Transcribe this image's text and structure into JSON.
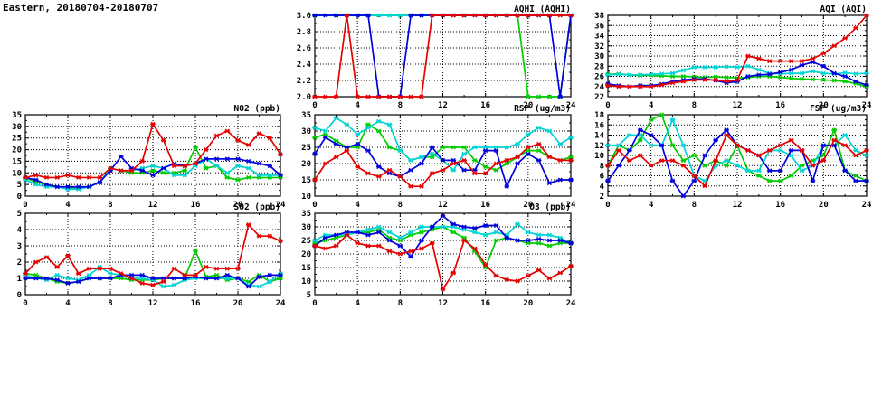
{
  "page_title": "Eastern, 20180704-20180707",
  "colors": {
    "red": "#e60000",
    "green": "#00cc00",
    "blue": "#0000dd",
    "cyan": "#00d4d4"
  },
  "chart_data": [
    {
      "id": "aqhi",
      "type": "line",
      "title": "AQHI (AQHI)",
      "xlim": [
        0,
        24
      ],
      "ylim": [
        2,
        3
      ],
      "xticks": [
        0,
        4,
        8,
        12,
        16,
        20,
        24
      ],
      "yticks": [
        "2.0",
        "2.2",
        "2.4",
        "2.6",
        "2.8",
        "3.0"
      ],
      "grid": true,
      "x": [
        0,
        1,
        2,
        3,
        4,
        5,
        6,
        7,
        8,
        9,
        10,
        11,
        12,
        13,
        14,
        15,
        16,
        17,
        18,
        19,
        20,
        21,
        22,
        23,
        24
      ],
      "series": [
        {
          "name": "green",
          "color": "#00cc00",
          "values": [
            3,
            3,
            3,
            3,
            3,
            3,
            3,
            3,
            3,
            3,
            3,
            3,
            3,
            3,
            3,
            3,
            3,
            3,
            3,
            3,
            2,
            2,
            2,
            2,
            3
          ]
        },
        {
          "name": "cyan",
          "color": "#00d4d4",
          "values": [
            3,
            3,
            3,
            3,
            3,
            3,
            3,
            3,
            3,
            3,
            3,
            3,
            3,
            3,
            3,
            3,
            3,
            3,
            3,
            3,
            3,
            3,
            3,
            3,
            3
          ]
        },
        {
          "name": "blue",
          "color": "#0000dd",
          "values": [
            3,
            3,
            3,
            3,
            3,
            3,
            2,
            2,
            2,
            3,
            3,
            3,
            3,
            3,
            3,
            3,
            3,
            3,
            3,
            3,
            3,
            3,
            3,
            2,
            3
          ]
        },
        {
          "name": "red",
          "color": "#e60000",
          "values": [
            2,
            2,
            2,
            3,
            2,
            2,
            2,
            2,
            2,
            2,
            2,
            3,
            3,
            3,
            3,
            3,
            3,
            3,
            3,
            3,
            3,
            3,
            3,
            3,
            3
          ]
        }
      ]
    },
    {
      "id": "aqi",
      "type": "line",
      "title": "AQI (AQI)",
      "xlim": [
        0,
        24
      ],
      "ylim": [
        22,
        38
      ],
      "xticks": [
        0,
        4,
        8,
        12,
        16,
        20,
        24
      ],
      "yticks": [
        "22",
        "24",
        "26",
        "28",
        "30",
        "32",
        "34",
        "36",
        "38"
      ],
      "grid": true,
      "x": [
        0,
        1,
        2,
        3,
        4,
        5,
        6,
        7,
        8,
        9,
        10,
        11,
        12,
        13,
        14,
        15,
        16,
        17,
        18,
        19,
        20,
        21,
        22,
        23,
        24
      ],
      "series": [
        {
          "name": "green",
          "color": "#00cc00",
          "values": [
            26.4,
            26.5,
            26.3,
            26.2,
            26.2,
            26.1,
            26,
            26,
            25.9,
            25.8,
            25.9,
            25.8,
            25.7,
            25.8,
            26,
            26,
            25.8,
            25.6,
            25.5,
            25.4,
            25.3,
            25.2,
            25,
            24.6,
            24
          ]
        },
        {
          "name": "cyan",
          "color": "#00d4d4",
          "values": [
            26.3,
            26.4,
            26.3,
            26.3,
            26.4,
            26.5,
            26.6,
            27.2,
            27.8,
            27.8,
            27.8,
            27.9,
            27.8,
            28,
            27.3,
            26.6,
            26.5,
            26.6,
            26.6,
            27,
            26.6,
            26.5,
            26.7,
            26.5,
            26.6
          ]
        },
        {
          "name": "blue",
          "color": "#0000dd",
          "values": [
            24.5,
            24.2,
            24,
            24.2,
            24.2,
            24.5,
            25,
            25.3,
            25.5,
            25.5,
            25.2,
            24.7,
            25,
            26,
            26.3,
            26.4,
            26.8,
            27.3,
            28.2,
            28.8,
            28,
            26.6,
            26,
            25,
            24.3
          ]
        },
        {
          "name": "red",
          "color": "#e60000",
          "values": [
            24.2,
            24,
            24,
            24,
            24,
            24.3,
            24.7,
            25,
            25.3,
            25.3,
            25.3,
            25,
            25.3,
            30,
            29.5,
            29,
            29,
            29,
            29,
            29.5,
            30.5,
            32,
            33.5,
            35.5,
            38
          ]
        }
      ]
    },
    {
      "id": "no2",
      "type": "line",
      "title": "NO2 (ppb)",
      "xlim": [
        0,
        24
      ],
      "ylim": [
        0,
        35
      ],
      "xticks": [
        0,
        4,
        8,
        12,
        16,
        20,
        24
      ],
      "yticks": [
        "0",
        "5",
        "10",
        "15",
        "20",
        "25",
        "30",
        "35"
      ],
      "grid": true,
      "x": [
        0,
        1,
        2,
        3,
        4,
        5,
        6,
        7,
        8,
        9,
        10,
        11,
        12,
        13,
        14,
        15,
        16,
        17,
        18,
        19,
        20,
        21,
        22,
        23,
        24
      ],
      "series": [
        {
          "name": "green",
          "color": "#00cc00",
          "values": [
            8,
            6,
            5,
            4,
            4,
            3,
            4,
            6,
            12,
            11,
            10,
            10,
            11,
            10,
            10,
            11,
            21,
            12,
            13,
            8,
            7,
            8,
            8,
            8,
            8
          ]
        },
        {
          "name": "cyan",
          "color": "#00d4d4",
          "values": [
            7,
            5,
            4,
            4,
            3,
            3,
            4,
            6,
            12,
            11,
            11,
            12,
            13,
            12,
            9,
            9,
            13,
            16,
            13,
            10,
            13,
            12,
            9,
            9,
            9
          ]
        },
        {
          "name": "blue",
          "color": "#0000dd",
          "values": [
            8,
            7,
            5,
            4,
            4,
            4,
            4,
            6,
            11,
            17,
            12,
            11,
            9,
            12,
            14,
            13,
            14,
            16,
            16,
            16,
            16,
            15,
            14,
            13,
            9
          ]
        },
        {
          "name": "red",
          "color": "#e60000",
          "values": [
            8,
            9,
            8,
            8,
            9,
            8,
            8,
            8,
            12,
            11,
            11,
            15,
            31,
            24,
            13,
            13,
            14,
            20,
            26,
            28,
            24,
            22,
            27,
            25,
            18
          ]
        }
      ]
    },
    {
      "id": "rsp",
      "type": "line",
      "title": "RSP (ug/m3)",
      "xlim": [
        0,
        24
      ],
      "ylim": [
        10,
        35
      ],
      "xticks": [
        0,
        4,
        8,
        12,
        16,
        20,
        24
      ],
      "yticks": [
        "10",
        "15",
        "20",
        "25",
        "30",
        "35"
      ],
      "grid": true,
      "x": [
        0,
        1,
        2,
        3,
        4,
        5,
        6,
        7,
        8,
        9,
        10,
        11,
        12,
        13,
        14,
        15,
        16,
        17,
        18,
        19,
        20,
        21,
        22,
        23,
        24
      ],
      "series": [
        {
          "name": "green",
          "color": "#00cc00",
          "values": [
            28,
            29,
            27,
            25,
            25,
            32,
            30,
            25,
            24,
            21,
            22,
            22,
            25,
            25,
            25,
            21,
            19,
            18,
            20,
            22,
            24,
            24,
            22,
            21,
            22
          ]
        },
        {
          "name": "cyan",
          "color": "#00d4d4",
          "values": [
            31,
            30,
            34,
            32,
            29,
            31,
            33,
            32,
            24,
            21,
            22,
            23,
            21,
            18,
            23,
            25,
            25,
            25,
            25,
            26,
            29,
            31,
            30,
            26,
            28
          ]
        },
        {
          "name": "blue",
          "color": "#0000dd",
          "values": [
            23,
            28,
            26,
            25,
            26,
            24,
            19,
            17,
            16,
            18,
            20,
            25,
            21,
            21,
            18,
            18,
            24,
            24,
            13,
            20,
            23,
            21,
            14,
            15,
            15
          ]
        },
        {
          "name": "red",
          "color": "#e60000",
          "values": [
            15,
            20,
            22,
            24,
            19,
            17,
            16,
            18,
            16,
            13,
            13,
            17,
            18,
            20,
            21,
            17,
            17,
            20,
            21,
            22,
            25,
            26,
            22,
            21,
            21
          ]
        }
      ]
    },
    {
      "id": "fsp",
      "type": "line",
      "title": "FSP (ug/m3)",
      "xlim": [
        0,
        24
      ],
      "ylim": [
        2,
        18
      ],
      "xticks": [
        0,
        4,
        8,
        12,
        16,
        20,
        24
      ],
      "yticks": [
        "2",
        "4",
        "6",
        "8",
        "10",
        "12",
        "14",
        "16",
        "18"
      ],
      "grid": true,
      "x": [
        0,
        1,
        2,
        3,
        4,
        5,
        6,
        7,
        8,
        9,
        10,
        11,
        12,
        13,
        14,
        15,
        16,
        17,
        18,
        19,
        20,
        21,
        22,
        23,
        24
      ],
      "series": [
        {
          "name": "green",
          "color": "#00cc00",
          "values": [
            8,
            12,
            11,
            13,
            17,
            18,
            12,
            9,
            10,
            8,
            9,
            8,
            12,
            7,
            6,
            5,
            5,
            6,
            8,
            9,
            10,
            15,
            7,
            6,
            5
          ]
        },
        {
          "name": "cyan",
          "color": "#00d4d4",
          "values": [
            12,
            12,
            14,
            14,
            12,
            12,
            17,
            12,
            6,
            5,
            8,
            9,
            8,
            7,
            7,
            11,
            11,
            10,
            7,
            8,
            12,
            12,
            14,
            11,
            10
          ]
        },
        {
          "name": "blue",
          "color": "#0000dd",
          "values": [
            5,
            8,
            11,
            15,
            14,
            12,
            5,
            2,
            5,
            10,
            13,
            15,
            12,
            11,
            10,
            7,
            7,
            11,
            11,
            5,
            12,
            12,
            7,
            5,
            5
          ]
        },
        {
          "name": "red",
          "color": "#e60000",
          "values": [
            8,
            11,
            9,
            10,
            8,
            9,
            9,
            8,
            6,
            4,
            9,
            14,
            12,
            11,
            10,
            11,
            12,
            13,
            11,
            8,
            9,
            13,
            12,
            10,
            11
          ]
        }
      ]
    },
    {
      "id": "so2",
      "type": "line",
      "title": "SO2 (ppb)",
      "xlim": [
        0,
        24
      ],
      "ylim": [
        0,
        5
      ],
      "xticks": [
        0,
        4,
        8,
        12,
        16,
        20,
        24
      ],
      "yticks": [
        "0",
        "1",
        "2",
        "3",
        "4",
        "5"
      ],
      "grid": true,
      "x": [
        0,
        1,
        2,
        3,
        4,
        5,
        6,
        7,
        8,
        9,
        10,
        11,
        12,
        13,
        14,
        15,
        16,
        17,
        18,
        19,
        20,
        21,
        22,
        23,
        24
      ],
      "series": [
        {
          "name": "green",
          "color": "#00cc00",
          "values": [
            1.3,
            1.2,
            1,
            0.8,
            0.7,
            0.8,
            1,
            1,
            1,
            1,
            0.9,
            0.9,
            0.9,
            1,
            1,
            1,
            2.7,
            1.1,
            1.2,
            0.9,
            1,
            0.8,
            1.2,
            0.8,
            1
          ]
        },
        {
          "name": "cyan",
          "color": "#00d4d4",
          "values": [
            1.2,
            1,
            0.9,
            1.2,
            1,
            0.9,
            1.2,
            1.7,
            1.3,
            1.2,
            1,
            1,
            0.9,
            0.5,
            0.6,
            0.9,
            1,
            1,
            1,
            1,
            1,
            0.6,
            0.5,
            0.8,
            1.3
          ]
        },
        {
          "name": "blue",
          "color": "#0000dd",
          "values": [
            1,
            1,
            1,
            0.9,
            0.7,
            0.8,
            1,
            1,
            1,
            1.2,
            1.2,
            1.2,
            1,
            1,
            1,
            1,
            1.1,
            1,
            1,
            1.2,
            1,
            0.5,
            1.1,
            1.2,
            1.2
          ]
        },
        {
          "name": "red",
          "color": "#e60000",
          "values": [
            1.3,
            2,
            2.3,
            1.7,
            2.4,
            1.3,
            1.6,
            1.6,
            1.6,
            1.3,
            1,
            0.7,
            0.6,
            0.8,
            1.6,
            1.2,
            1.2,
            1.7,
            1.6,
            1.6,
            1.6,
            4.3,
            3.6,
            3.6,
            3.3
          ]
        }
      ]
    },
    {
      "id": "o3",
      "type": "line",
      "title": "O3 (ppb)",
      "xlim": [
        0,
        24
      ],
      "ylim": [
        5,
        35
      ],
      "xticks": [
        0,
        4,
        8,
        12,
        16,
        20,
        24
      ],
      "yticks": [
        "5",
        "10",
        "15",
        "20",
        "25",
        "30",
        "35"
      ],
      "grid": true,
      "x": [
        0,
        1,
        2,
        3,
        4,
        5,
        6,
        7,
        8,
        9,
        10,
        11,
        12,
        13,
        14,
        15,
        16,
        17,
        18,
        19,
        20,
        21,
        22,
        23,
        24
      ],
      "series": [
        {
          "name": "green",
          "color": "#00cc00",
          "values": [
            24,
            25,
            26,
            27,
            28,
            28,
            29,
            26,
            25,
            27,
            28,
            29,
            30,
            28,
            26,
            21,
            15,
            25,
            26,
            25,
            24,
            24,
            23,
            24,
            24
          ]
        },
        {
          "name": "cyan",
          "color": "#00d4d4",
          "values": [
            25,
            27,
            27,
            27,
            28,
            29,
            30,
            28,
            26,
            28,
            30,
            30,
            30,
            30,
            29,
            28,
            27,
            28,
            27,
            31,
            28,
            27,
            27,
            26,
            24
          ]
        },
        {
          "name": "blue",
          "color": "#0000dd",
          "values": [
            23,
            26,
            27,
            28,
            28,
            27,
            28,
            25,
            23,
            19,
            25,
            30,
            34,
            31,
            30,
            29.5,
            30.5,
            30.5,
            26,
            25,
            25,
            25.5,
            25,
            25,
            24
          ]
        },
        {
          "name": "red",
          "color": "#e60000",
          "values": [
            23,
            22,
            23,
            27,
            24,
            23,
            23,
            21,
            20,
            21,
            22,
            24,
            7,
            13,
            25,
            22,
            16,
            12,
            10.5,
            10,
            12,
            14,
            11,
            13,
            15.5
          ]
        }
      ]
    }
  ]
}
